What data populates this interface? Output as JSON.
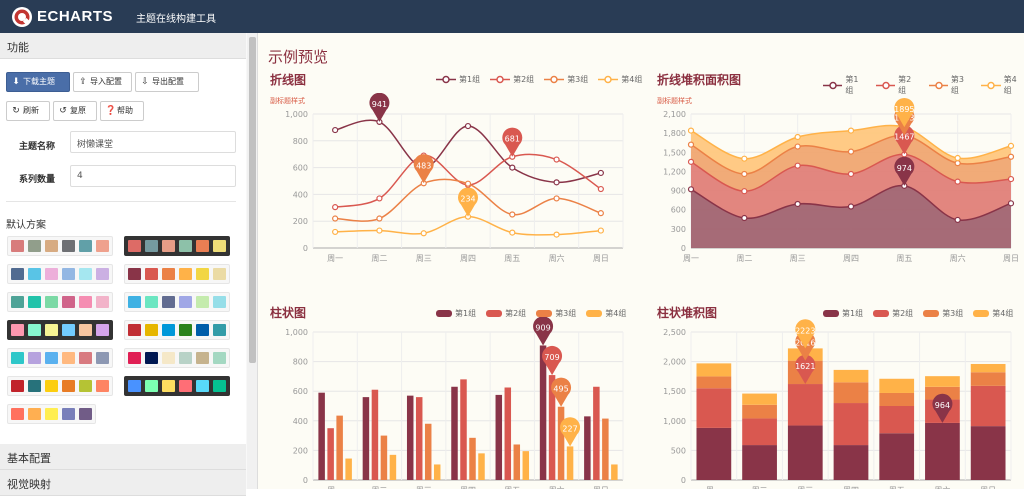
{
  "header": {
    "brand": "ECHARTS",
    "subtitle": "主题在线构建工具"
  },
  "sidebar": {
    "section_function": "功能",
    "buttons": {
      "download": "下载主题",
      "import": "导入配置",
      "export": "导出配置",
      "refresh": "刷新",
      "reset": "复原",
      "help": "帮助"
    },
    "theme_name_label": "主题名称",
    "theme_name_value": "树懒课堂",
    "series_count_label": "系列数量",
    "series_count_value": "4",
    "default_scheme_title": "默认方案",
    "section_basic": "基本配置",
    "section_visual": "视觉映射",
    "schemes": [
      {
        "dark": false,
        "colors": [
          "#d87c7c",
          "#919e8b",
          "#d7ab82",
          "#6e7074",
          "#61a0a8",
          "#efa18d"
        ]
      },
      {
        "dark": true,
        "colors": [
          "#dd6b66",
          "#759aa0",
          "#e69d87",
          "#8dc1a9",
          "#ea7e53",
          "#eedd78"
        ]
      },
      {
        "dark": false,
        "colors": [
          "#516b91",
          "#59c4e6",
          "#edafda",
          "#93b7e3",
          "#a5e7f0",
          "#cbb0e3"
        ]
      },
      {
        "dark": false,
        "colors": [
          "#893448",
          "#d95850",
          "#eb8146",
          "#ffb248",
          "#f2d643",
          "#ebdba4"
        ]
      },
      {
        "dark": false,
        "colors": [
          "#4ea397",
          "#22c3aa",
          "#7bd9a5",
          "#d0648a",
          "#f58db2",
          "#f2b3c9"
        ]
      },
      {
        "dark": false,
        "colors": [
          "#3fb1e3",
          "#6be6c1",
          "#626c91",
          "#a0a7e6",
          "#c4ebad",
          "#96dee8"
        ]
      },
      {
        "dark": true,
        "colors": [
          "#fc97af",
          "#87f7cf",
          "#f7f494",
          "#72ccff",
          "#f7c5a0",
          "#d4a4eb"
        ]
      },
      {
        "dark": false,
        "colors": [
          "#c12e34",
          "#e6b600",
          "#0098d9",
          "#2b821d",
          "#005eaa",
          "#339ca8"
        ]
      },
      {
        "dark": false,
        "colors": [
          "#2ec7c9",
          "#b6a2de",
          "#5ab1ef",
          "#ffb980",
          "#d87a80",
          "#8d98b3"
        ]
      },
      {
        "dark": false,
        "colors": [
          "#e01f54",
          "#001852",
          "#f5e8c8",
          "#b8d2c7",
          "#c6b38e",
          "#a4d8c2"
        ]
      },
      {
        "dark": false,
        "colors": [
          "#c1232b",
          "#27727b",
          "#fcce10",
          "#e87c25",
          "#b5c334",
          "#fe8463"
        ]
      },
      {
        "dark": true,
        "colors": [
          "#4992ff",
          "#7cffb2",
          "#fddd60",
          "#ff6e76",
          "#58d9f9",
          "#05c091"
        ]
      },
      {
        "dark": false,
        "colors": [
          "#ff715e",
          "#ffaf51",
          "#ffee51",
          "#797fba",
          "#715c87"
        ]
      }
    ]
  },
  "main": {
    "title": "示例预览"
  },
  "legend": [
    "第1组",
    "第2组",
    "第3组",
    "第4组"
  ],
  "categories": [
    "周一",
    "周二",
    "周三",
    "周四",
    "周五",
    "周六",
    "周日"
  ],
  "colors": {
    "s1": "#893448",
    "s2": "#d95850",
    "s3": "#eb8146",
    "s4": "#ffb248"
  },
  "chart_data": [
    {
      "type": "line",
      "title": "折线图",
      "subtitle": "副标题样式",
      "categories": [
        "周一",
        "周二",
        "周三",
        "周四",
        "周五",
        "周六",
        "周日"
      ],
      "ylim": [
        0,
        1000
      ],
      "yticks": [
        "0",
        "200",
        "400",
        "600",
        "800",
        "1,000"
      ],
      "series": [
        {
          "name": "第1组",
          "values": [
            880,
            941,
            600,
            910,
            600,
            490,
            560
          ]
        },
        {
          "name": "第2组",
          "values": [
            305,
            370,
            690,
            470,
            681,
            660,
            440
          ]
        },
        {
          "name": "第3组",
          "values": [
            220,
            220,
            483,
            480,
            250,
            370,
            260
          ]
        },
        {
          "name": "第4组",
          "values": [
            120,
            130,
            110,
            234,
            115,
            100,
            130
          ]
        }
      ],
      "pins": [
        {
          "label": "941",
          "series": 0,
          "index": 1
        },
        {
          "label": "483",
          "series": 2,
          "index": 2
        },
        {
          "label": "681",
          "series": 1,
          "index": 4
        },
        {
          "label": "234",
          "series": 3,
          "index": 3
        }
      ]
    },
    {
      "type": "area",
      "stacked": true,
      "title": "折线堆积面积图",
      "subtitle": "副标题样式",
      "categories": [
        "周一",
        "周二",
        "周三",
        "周四",
        "周五",
        "周六",
        "周日"
      ],
      "ylim": [
        0,
        2100
      ],
      "yticks": [
        "0",
        "300",
        "600",
        "900",
        "1,200",
        "1,500",
        "1,800",
        "2,100"
      ],
      "series": [
        {
          "name": "第1组",
          "values": [
            920,
            470,
            690,
            650,
            974,
            440,
            700
          ]
        },
        {
          "name": "第2组",
          "values": [
            430,
            420,
            600,
            510,
            493,
            600,
            380
          ]
        },
        {
          "name": "第3组",
          "values": [
            270,
            270,
            300,
            350,
            296,
            290,
            350
          ]
        },
        {
          "name": "第4组",
          "values": [
            220,
            240,
            150,
            330,
            132,
            80,
            170
          ]
        }
      ],
      "pins": [
        {
          "label": "974",
          "series": 0,
          "index": 4
        },
        {
          "label": "1467",
          "series": 1,
          "index": 4
        },
        {
          "label": "1763",
          "series": 2,
          "index": 4
        },
        {
          "label": "1895",
          "series": 3,
          "index": 4
        }
      ]
    },
    {
      "type": "bar",
      "title": "柱状图",
      "categories": [
        "周一",
        "周二",
        "周三",
        "周四",
        "周五",
        "周六",
        "周日"
      ],
      "ylim": [
        0,
        1000
      ],
      "yticks": [
        "0",
        "200",
        "400",
        "600",
        "800",
        "1,000"
      ],
      "series": [
        {
          "name": "第1组",
          "values": [
            590,
            560,
            570,
            630,
            575,
            909,
            430
          ]
        },
        {
          "name": "第2组",
          "values": [
            350,
            610,
            560,
            680,
            625,
            709,
            630
          ]
        },
        {
          "name": "第3组",
          "values": [
            435,
            300,
            380,
            285,
            240,
            495,
            415
          ]
        },
        {
          "name": "第4组",
          "values": [
            145,
            170,
            105,
            180,
            195,
            227,
            105
          ]
        }
      ],
      "pins": [
        {
          "label": "909",
          "series": 0,
          "index": 5
        },
        {
          "label": "709",
          "series": 1,
          "index": 5
        },
        {
          "label": "495",
          "series": 2,
          "index": 5
        },
        {
          "label": "227",
          "series": 3,
          "index": 5
        }
      ]
    },
    {
      "type": "bar",
      "stacked": true,
      "title": "柱状堆积图",
      "categories": [
        "周一",
        "周二",
        "周三",
        "周四",
        "周五",
        "周六",
        "周日"
      ],
      "ylim": [
        0,
        2500
      ],
      "yticks": [
        "0",
        "500",
        "1,000",
        "1,500",
        "2,000",
        "2,500"
      ],
      "series": [
        {
          "name": "第1组",
          "values": [
            880,
            590,
            920,
            590,
            790,
            964,
            910
          ]
        },
        {
          "name": "第2组",
          "values": [
            670,
            450,
            701,
            710,
            460,
            395,
            680
          ]
        },
        {
          "name": "第3组",
          "values": [
            200,
            230,
            395,
            350,
            220,
            215,
            230
          ]
        },
        {
          "name": "第4组",
          "values": [
            220,
            190,
            207,
            210,
            240,
            180,
            140
          ]
        }
      ],
      "pins": [
        {
          "label": "964",
          "series": 0,
          "index": 5
        },
        {
          "label": "1621",
          "series": 1,
          "index": 2
        },
        {
          "label": "2016",
          "series": 2,
          "index": 2
        },
        {
          "label": "2223",
          "series": 3,
          "index": 2
        }
      ]
    }
  ]
}
